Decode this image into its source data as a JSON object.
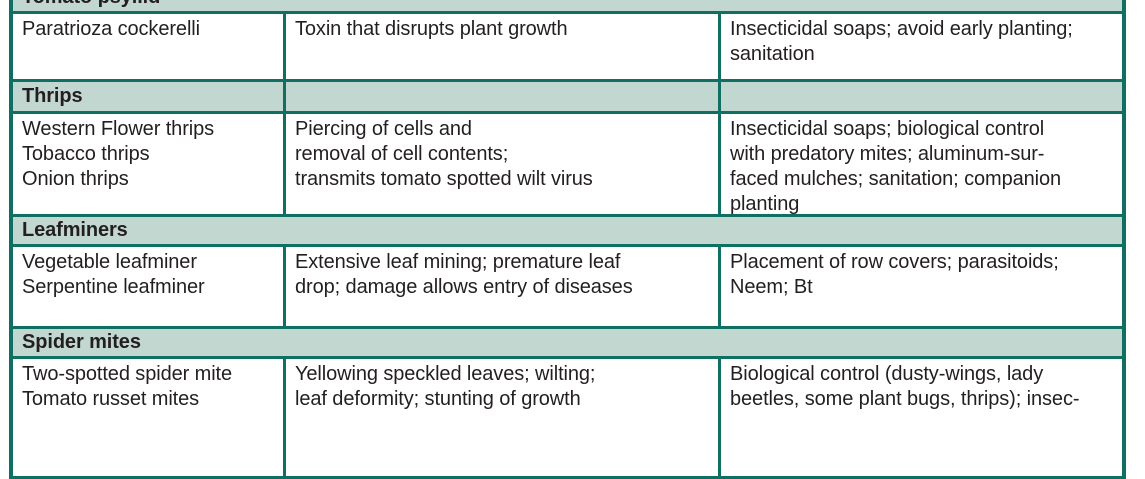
{
  "table": {
    "columns": [
      "pest",
      "damage",
      "control"
    ],
    "colors": {
      "border": "#0e6f62",
      "band_background": "#c1d7d0",
      "text": "#231f20",
      "page_background": "#ffffff"
    },
    "sections": [
      {
        "title": "Tomato psyllid",
        "band_divided": false,
        "rows": [
          {
            "pest": [
              "Paratrioza cockerelli"
            ],
            "damage": [
              "Toxin that disrupts plant growth"
            ],
            "control": [
              "Insecticidal soaps; avoid early planting;",
              "sanitation"
            ]
          }
        ]
      },
      {
        "title": "Thrips",
        "band_divided": true,
        "rows": [
          {
            "pest": [
              "Western Flower thrips",
              "Tobacco thrips",
              "Onion thrips"
            ],
            "damage": [
              "Piercing of cells and",
              "removal of cell contents;",
              "transmits tomato spotted wilt virus"
            ],
            "control": [
              "Insecticidal soaps; biological control",
              "with predatory mites; aluminum-sur-",
              "faced mulches; sanitation; companion",
              "planting"
            ]
          }
        ]
      },
      {
        "title": "Leafminers",
        "band_divided": false,
        "rows": [
          {
            "pest": [
              "Vegetable leafminer",
              "Serpentine leafminer"
            ],
            "damage": [
              "Extensive leaf mining; premature leaf",
              "drop; damage allows entry of diseases"
            ],
            "control": [
              "Placement of row covers; parasitoids;",
              "Neem; Bt"
            ]
          }
        ]
      },
      {
        "title": "Spider mites",
        "band_divided": false,
        "rows": [
          {
            "pest": [
              "Two-spotted spider mite",
              "Tomato russet mites"
            ],
            "damage": [
              "Yellowing speckled leaves; wilting;",
              "leaf deformity; stunting of growth"
            ],
            "control": [
              "Biological control (dusty-wings, lady",
              "beetles, some plant bugs, thrips); insec-"
            ]
          }
        ]
      }
    ]
  }
}
